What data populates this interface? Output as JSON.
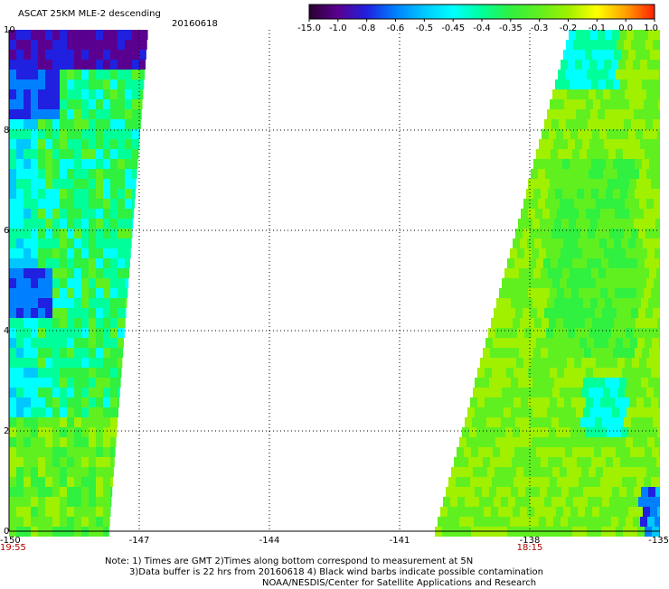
{
  "chart_data": {
    "type": "heatmap",
    "title": "ASCAT 25KM MLE-2 descending",
    "date": "20160618",
    "x_ticks": [
      "-150",
      "-147",
      "-144",
      "-141",
      "-138",
      "-135"
    ],
    "x_tick_values": [
      -150,
      -147,
      -144,
      -141,
      -138,
      -135
    ],
    "y_ticks": [
      "0",
      "2",
      "4",
      "6",
      "8",
      "10"
    ],
    "y_tick_values": [
      0,
      2,
      4,
      6,
      8,
      10
    ],
    "xlim": [
      -150,
      -135
    ],
    "ylim": [
      0,
      10
    ],
    "grid": "dotted",
    "colorbar": {
      "placement": "top-right",
      "labels": [
        "-15.0",
        "-1.0",
        "-0.8",
        "-0.6",
        "-0.5",
        "-0.45",
        "-0.4",
        "-0.35",
        "-0.3",
        "-0.2",
        "-0.1",
        "0.0",
        "1.0"
      ],
      "colors": [
        "#2a0030",
        "#5a0090",
        "#2020e0",
        "#0080ff",
        "#00c8ff",
        "#00ffff",
        "#00ff9a",
        "#30f040",
        "#60f020",
        "#a0f000",
        "#ffff00",
        "#ffa000",
        "#ff2000"
      ]
    },
    "time_labels": [
      {
        "x": -150,
        "text": "19:55"
      },
      {
        "x": -138,
        "text": "18:15"
      }
    ],
    "swaths": [
      {
        "name": "west",
        "lon_min": -150,
        "y_bottom_edge_lon": -147.7,
        "y_top_edge_lon": -146.8
      },
      {
        "name": "east",
        "lon_min_bottom": -140.2,
        "lon_min_top": -137.1,
        "lon_max": -135
      }
    ]
  },
  "notes": {
    "line1": "Note: 1) Times are GMT 2)Times along bottom correspond to measurement at 5N",
    "line2": "3)Data buffer is 22 hrs from 20160618 4) Black wind barbs indicate possible contamination",
    "line3": "NOAA/NESDIS/Center for Satellite Applications and Research"
  }
}
